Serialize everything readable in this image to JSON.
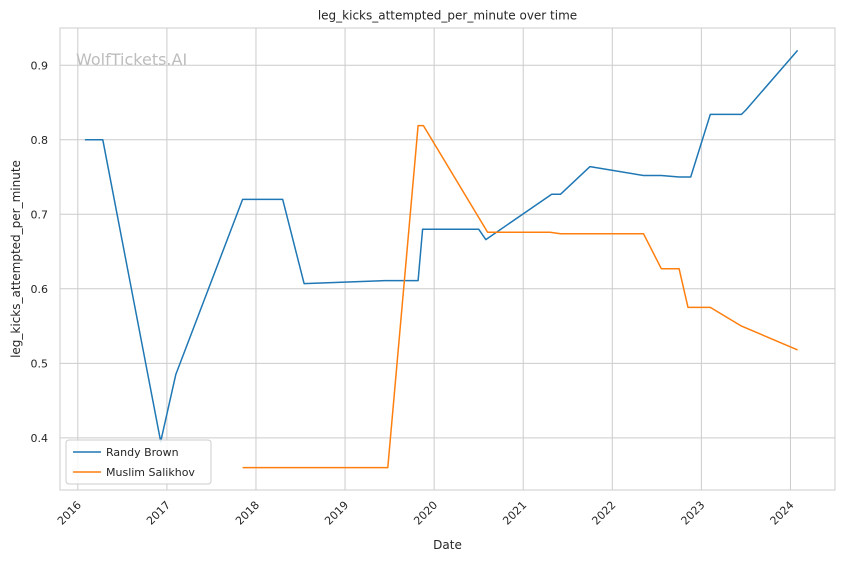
{
  "chart_data": {
    "type": "line",
    "title": "leg_kicks_attempted_per_minute over time",
    "xlabel": "Date",
    "ylabel": "leg_kicks_attempted_per_minute",
    "watermark": "WolfTickets.AI",
    "xlim": [
      2015.8,
      2024.5
    ],
    "ylim": [
      0.33,
      0.95
    ],
    "x_ticks": [
      2016,
      2017,
      2018,
      2019,
      2020,
      2021,
      2022,
      2023,
      2024
    ],
    "x_tick_labels": [
      "2016",
      "2017",
      "2018",
      "2019",
      "2020",
      "2021",
      "2022",
      "2023",
      "2024"
    ],
    "y_ticks": [
      0.4,
      0.5,
      0.6,
      0.7,
      0.8,
      0.9
    ],
    "y_tick_labels": [
      "0.4",
      "0.5",
      "0.6",
      "0.7",
      "0.8",
      "0.9"
    ],
    "grid": true,
    "legend_position": "bottom-left",
    "series": [
      {
        "name": "Randy Brown",
        "color": "#1f77b4",
        "points": [
          [
            2016.08,
            0.8
          ],
          [
            2016.28,
            0.8
          ],
          [
            2016.93,
            0.395
          ],
          [
            2017.1,
            0.485
          ],
          [
            2017.85,
            0.72
          ],
          [
            2018.3,
            0.72
          ],
          [
            2018.54,
            0.607
          ],
          [
            2019.45,
            0.611
          ],
          [
            2019.82,
            0.611
          ],
          [
            2019.87,
            0.68
          ],
          [
            2020.5,
            0.68
          ],
          [
            2020.58,
            0.666
          ],
          [
            2021.32,
            0.727
          ],
          [
            2021.42,
            0.727
          ],
          [
            2021.75,
            0.764
          ],
          [
            2022.35,
            0.752
          ],
          [
            2022.55,
            0.752
          ],
          [
            2022.75,
            0.75
          ],
          [
            2022.88,
            0.75
          ],
          [
            2023.1,
            0.834
          ],
          [
            2023.45,
            0.834
          ],
          [
            2023.5,
            0.84
          ],
          [
            2024.08,
            0.92
          ]
        ]
      },
      {
        "name": "Muslim Salikhov",
        "color": "#ff7f0e",
        "points": [
          [
            2017.85,
            0.36
          ],
          [
            2019.48,
            0.36
          ],
          [
            2019.82,
            0.819
          ],
          [
            2019.88,
            0.819
          ],
          [
            2020.6,
            0.676
          ],
          [
            2021.3,
            0.676
          ],
          [
            2021.42,
            0.674
          ],
          [
            2022.35,
            0.674
          ],
          [
            2022.55,
            0.627
          ],
          [
            2022.75,
            0.627
          ],
          [
            2022.85,
            0.575
          ],
          [
            2023.1,
            0.575
          ],
          [
            2023.45,
            0.55
          ],
          [
            2024.08,
            0.518
          ]
        ]
      }
    ]
  }
}
